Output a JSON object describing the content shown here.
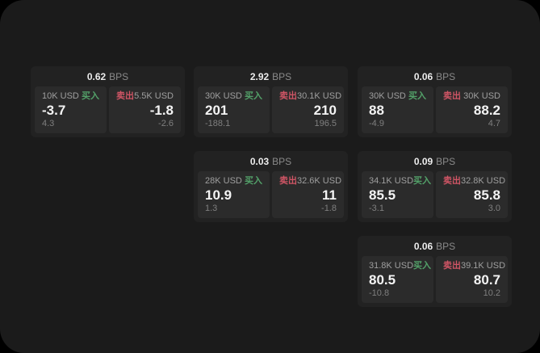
{
  "labels": {
    "bps_suffix": "BPS",
    "buy": "买入",
    "sell": "卖出"
  },
  "colors": {
    "buy_accent": "#53a169",
    "sell_accent": "#cf5565",
    "card_bg": "#222222",
    "panel_bg": "#2b2b2b",
    "screen_bg": "#1b1b1b"
  },
  "cards": [
    {
      "bps": "0.62",
      "buy": {
        "notional": "10K USD",
        "price": "-3.7",
        "delta": "4.3"
      },
      "sell": {
        "notional": "5.5K USD",
        "price": "-1.8",
        "delta": "-2.6"
      }
    },
    {
      "bps": "2.92",
      "buy": {
        "notional": "30K USD",
        "price": "201",
        "delta": "-188.1"
      },
      "sell": {
        "notional": "30.1K USD",
        "price": "210",
        "delta": "196.5"
      }
    },
    {
      "bps": "0.06",
      "buy": {
        "notional": "30K USD",
        "price": "88",
        "delta": "-4.9"
      },
      "sell": {
        "notional": "30K USD",
        "price": "88.2",
        "delta": "4.7"
      }
    },
    {
      "bps": "0.03",
      "buy": {
        "notional": "28K USD",
        "price": "10.9",
        "delta": "1.3"
      },
      "sell": {
        "notional": "32.6K USD",
        "price": "11",
        "delta": "-1.8"
      }
    },
    {
      "bps": "0.09",
      "buy": {
        "notional": "34.1K USD",
        "price": "85.5",
        "delta": "-3.1"
      },
      "sell": {
        "notional": "32.8K USD",
        "price": "85.8",
        "delta": "3.0"
      }
    },
    {
      "bps": "0.06",
      "buy": {
        "notional": "31.8K USD",
        "price": "80.5",
        "delta": "-10.8"
      },
      "sell": {
        "notional": "39.1K USD",
        "price": "80.7",
        "delta": "10.2"
      }
    }
  ]
}
